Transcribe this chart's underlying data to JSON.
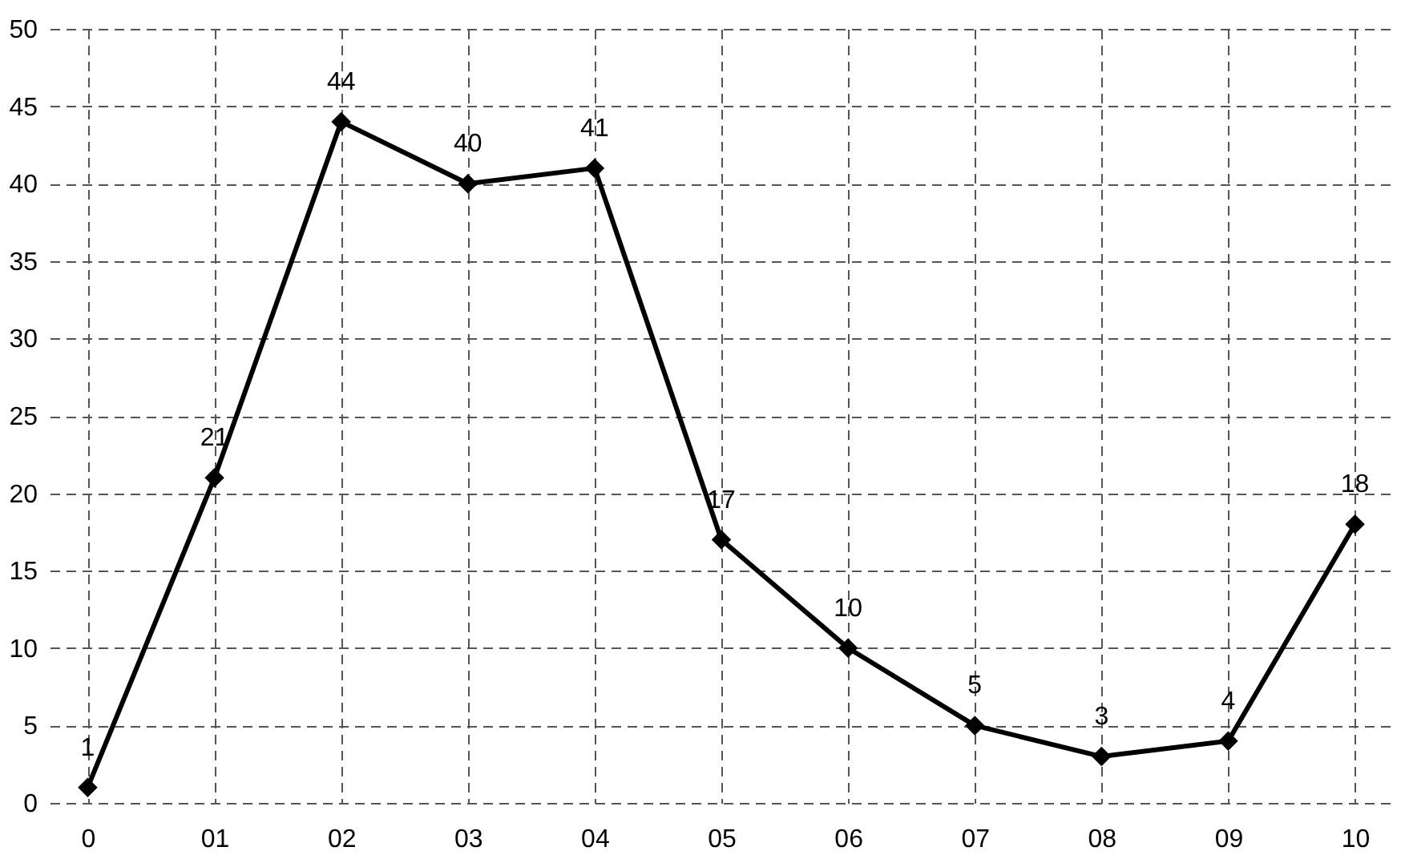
{
  "chart_data": {
    "type": "line",
    "categories": [
      "0",
      "01",
      "02",
      "03",
      "04",
      "05",
      "06",
      "07",
      "08",
      "09",
      "10"
    ],
    "values": [
      1,
      21,
      44,
      40,
      41,
      17,
      10,
      5,
      3,
      4,
      18
    ],
    "color": "#000000",
    "ylim": [
      0,
      50
    ],
    "yticks": [
      0,
      5,
      10,
      15,
      20,
      25,
      30,
      35,
      40,
      45,
      50
    ],
    "grid": true,
    "marker": "diamond",
    "line_style": "solid",
    "data_labels": true
  }
}
